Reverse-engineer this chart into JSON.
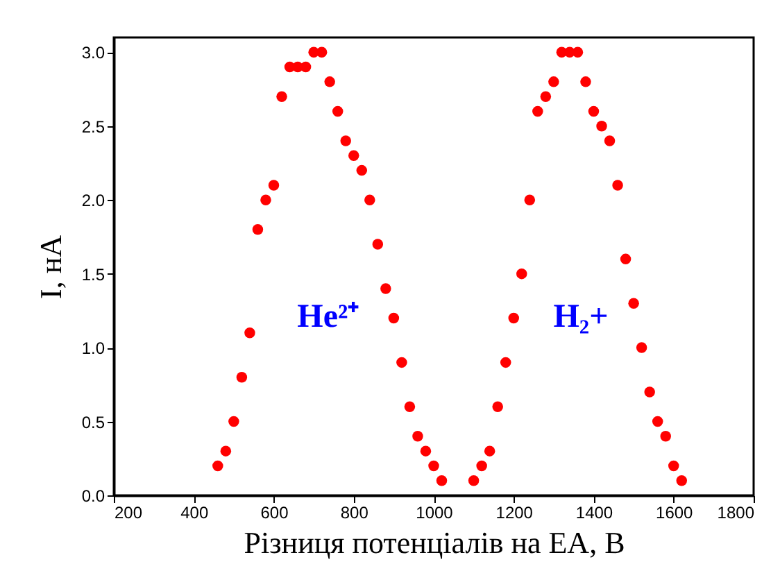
{
  "chart_data": {
    "type": "scatter",
    "xlabel": "Різниця потенціалів на ЕА, В",
    "ylabel": "I, нА",
    "x": [
      460,
      480,
      500,
      520,
      540,
      560,
      580,
      600,
      620,
      640,
      660,
      680,
      700,
      720,
      740,
      760,
      780,
      800,
      820,
      840,
      860,
      880,
      900,
      920,
      940,
      960,
      980,
      1000,
      1020,
      1100,
      1120,
      1140,
      1160,
      1180,
      1200,
      1220,
      1240,
      1260,
      1280,
      1300,
      1320,
      1340,
      1360,
      1380,
      1400,
      1420,
      1440,
      1460,
      1480,
      1500,
      1520,
      1540,
      1560,
      1580,
      1600,
      1620
    ],
    "series": [
      {
        "color": "#ff0000",
        "values": [
          0.2,
          0.3,
          0.5,
          0.8,
          1.1,
          1.8,
          2.0,
          2.1,
          2.7,
          2.9,
          2.9,
          2.9,
          3.0,
          3.0,
          2.8,
          2.6,
          2.4,
          2.3,
          2.2,
          2.0,
          1.7,
          1.4,
          1.2,
          0.9,
          0.6,
          0.4,
          0.3,
          0.2,
          0.1,
          0.1,
          0.2,
          0.3,
          0.6,
          0.9,
          1.2,
          1.5,
          2.0,
          2.6,
          2.7,
          2.8,
          3.0,
          3.0,
          3.0,
          2.8,
          2.6,
          2.5,
          2.4,
          2.1,
          1.6,
          1.3,
          1.0,
          0.7,
          0.5,
          0.4,
          0.2,
          0.1
        ]
      }
    ],
    "marker": "circle",
    "grid": false,
    "xlim": [
      200,
      1800
    ],
    "xticks": [
      200,
      400,
      600,
      800,
      1000,
      1200,
      1400,
      1600,
      1800
    ],
    "ylim": [
      0,
      3.1
    ],
    "yticks": [
      {
        "value": 0,
        "label": "0.0"
      },
      {
        "value": 0.5,
        "label": "0.5"
      },
      {
        "value": 1,
        "label": "1.0"
      },
      {
        "value": 1.5,
        "label": "1.5"
      },
      {
        "value": 2,
        "label": "2.0"
      },
      {
        "value": 2.5,
        "label": "2.5"
      },
      {
        "value": 3,
        "label": "3.0"
      }
    ],
    "annotations": [
      "He²⁺",
      "H₂+"
    ]
  }
}
